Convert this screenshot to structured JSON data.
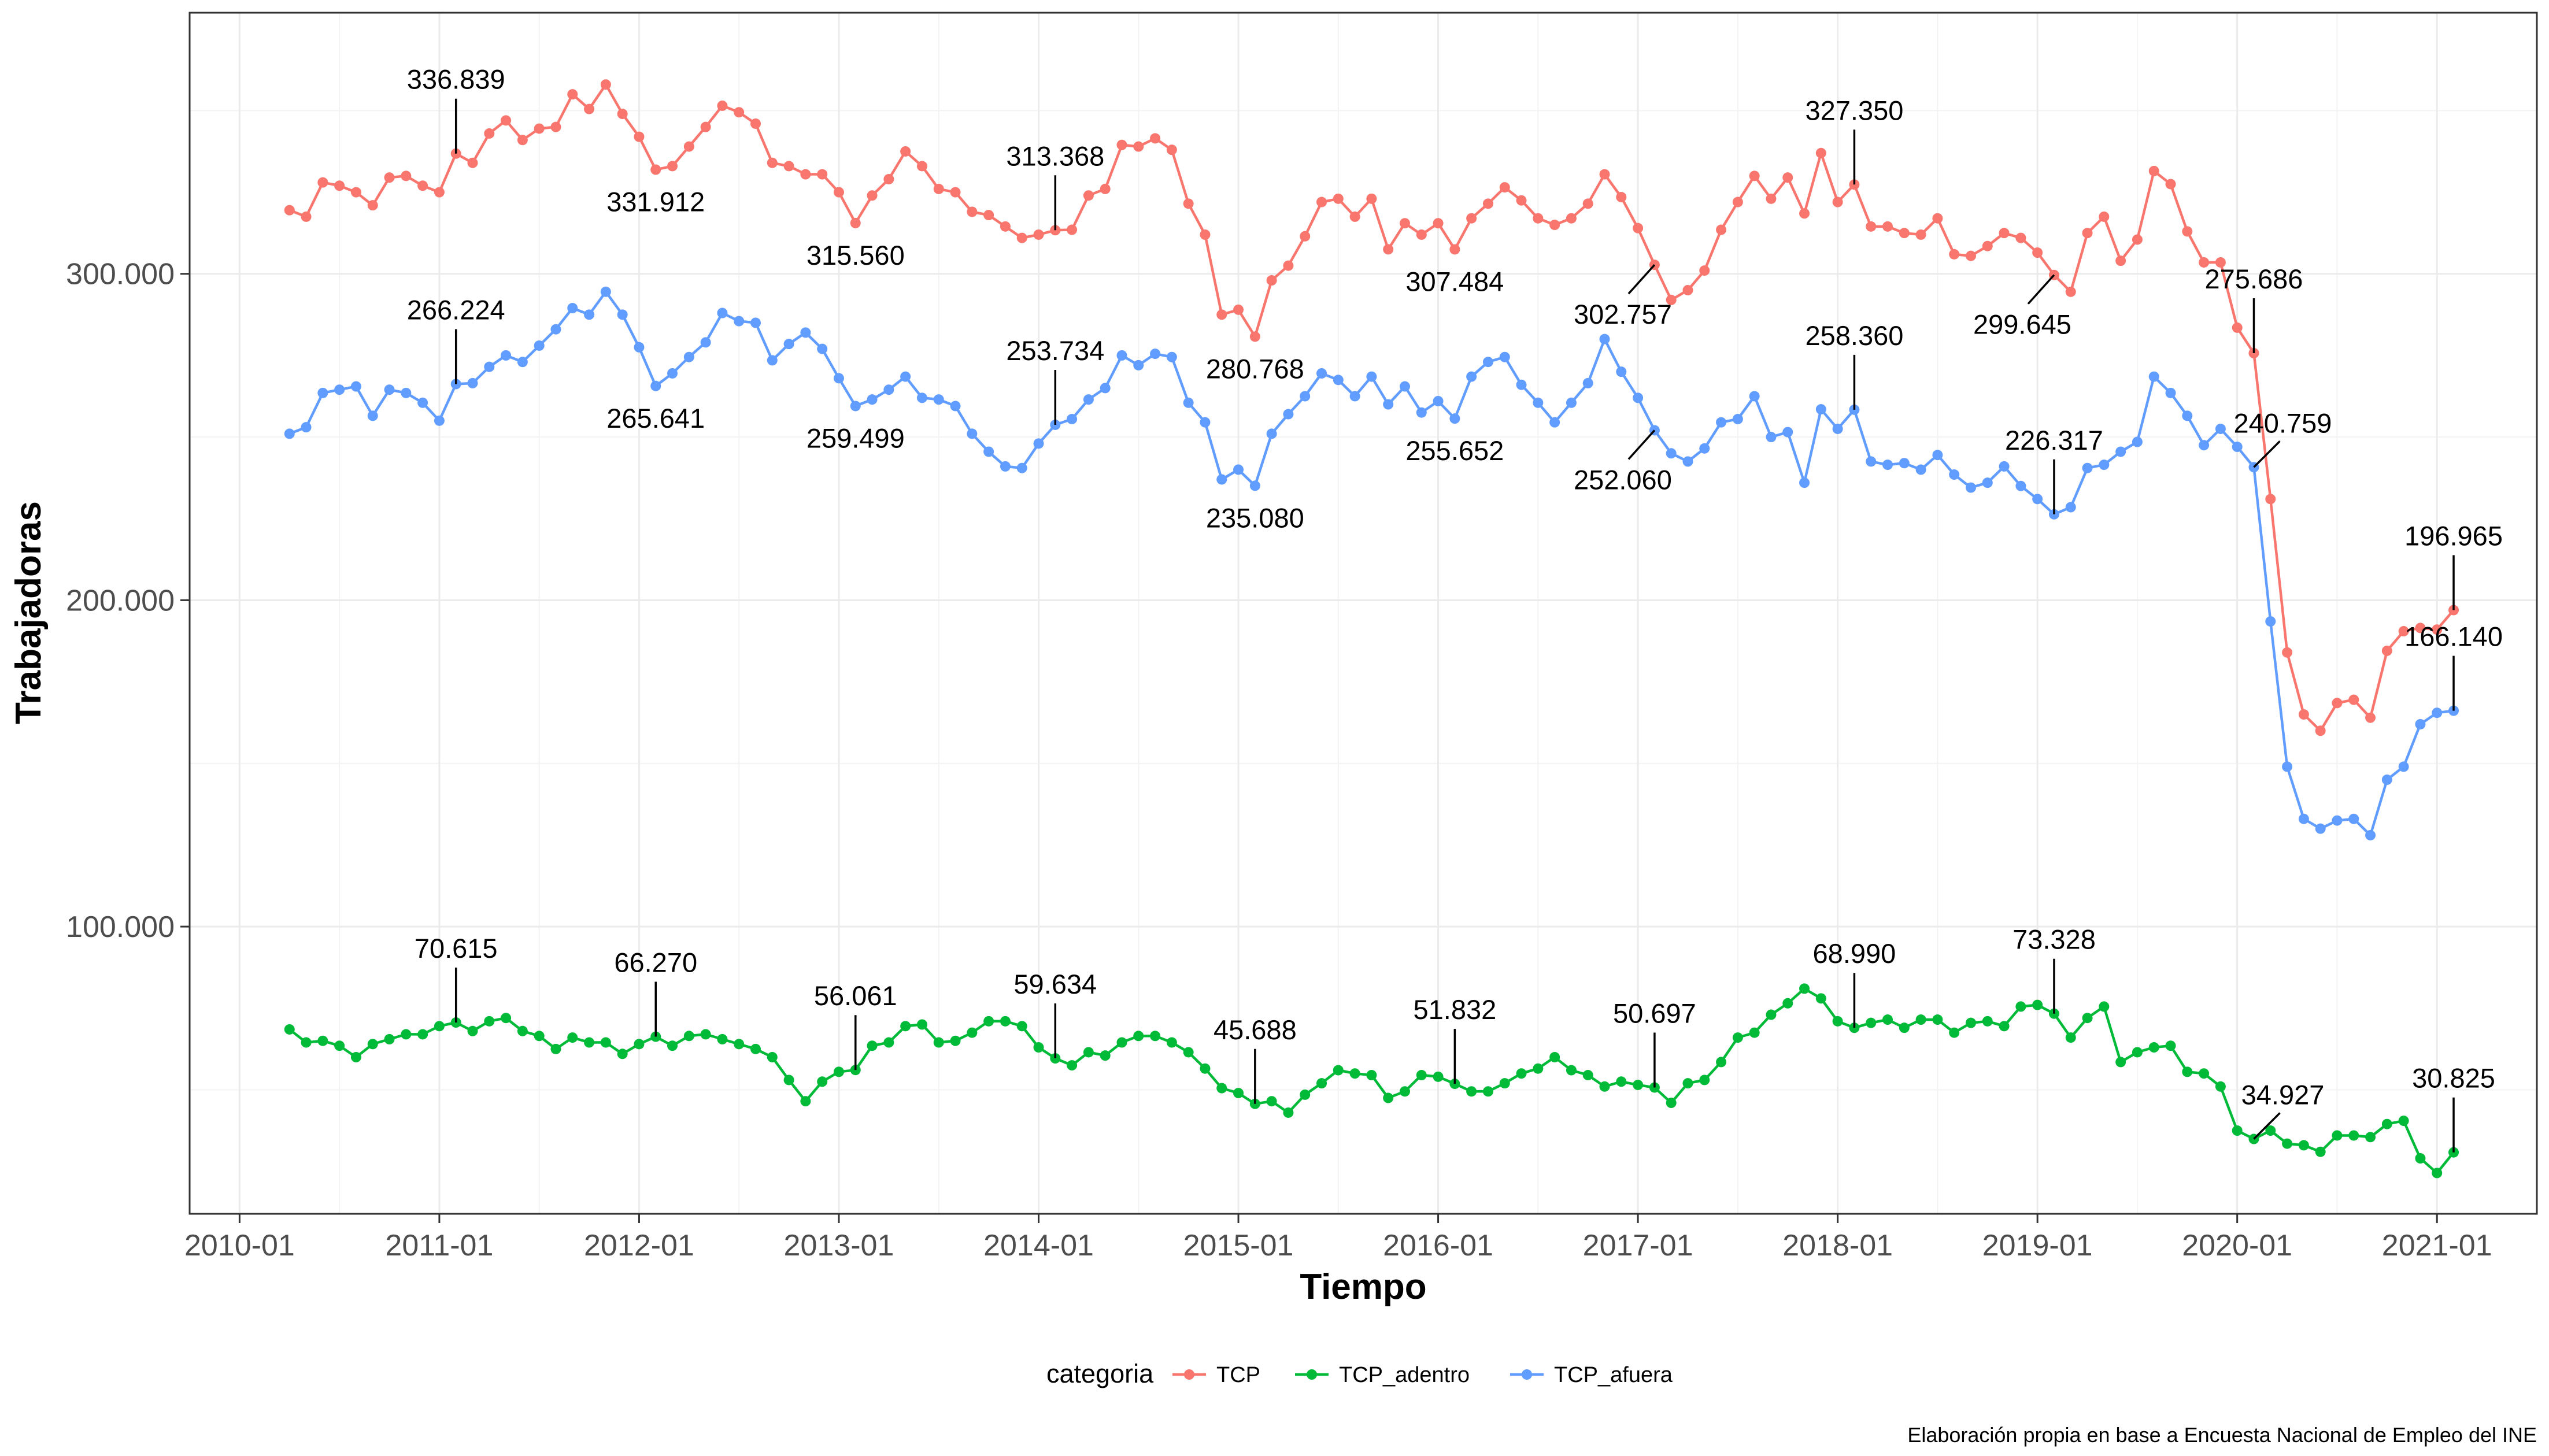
{
  "chart_data": {
    "type": "line",
    "xlabel": "Tiempo",
    "ylabel": "Trabajadoras",
    "caption": "Elaboración propia en base a Encuesta Nacional de Empleo del INE",
    "legend_title": "categoria",
    "legend_position": "bottom",
    "grid": true,
    "x_start": "2010-04",
    "x_end": "2021-02",
    "xlim": [
      "2009-10",
      "2021-07"
    ],
    "ylim": [
      12000,
      380000
    ],
    "x_ticks": [
      "2010-01",
      "2011-01",
      "2012-01",
      "2013-01",
      "2014-01",
      "2015-01",
      "2016-01",
      "2017-01",
      "2018-01",
      "2019-01",
      "2020-01",
      "2021-01"
    ],
    "y_ticks": [
      100000,
      200000,
      300000
    ],
    "y_tick_labels": [
      "100.000",
      "200.000",
      "300.000"
    ],
    "series": [
      {
        "name": "TCP",
        "color": "#F8766D",
        "values": [
          319500,
          317500,
          328000,
          327000,
          325000,
          321000,
          329500,
          330000,
          327000,
          325000,
          336839,
          334000,
          343000,
          347000,
          341000,
          344500,
          345000,
          355000,
          350500,
          358000,
          349000,
          342000,
          331912,
          333000,
          339000,
          345000,
          351500,
          349500,
          346000,
          334000,
          333000,
          330500,
          330500,
          325000,
          315560,
          324000,
          329000,
          337500,
          333000,
          326000,
          325000,
          319000,
          318000,
          314500,
          311000,
          312000,
          313368,
          313500,
          324000,
          326000,
          339500,
          339000,
          341500,
          338000,
          321500,
          312000,
          287500,
          289000,
          280768,
          298000,
          302500,
          311500,
          322000,
          323000,
          317500,
          323000,
          307500,
          315500,
          312000,
          315500,
          307484,
          317000,
          321500,
          326500,
          322500,
          317000,
          315000,
          317000,
          321500,
          330500,
          323500,
          314000,
          302757,
          292000,
          295000,
          301000,
          313500,
          322000,
          330000,
          323000,
          329500,
          318500,
          337000,
          322000,
          327350,
          314500,
          314500,
          312500,
          312000,
          317000,
          306000,
          305500,
          308500,
          312500,
          311000,
          306500,
          299645,
          294500,
          312500,
          317500,
          304000,
          310500,
          331500,
          327500,
          313000,
          303500,
          303500,
          283500,
          275686,
          231000,
          184000,
          165000,
          160000,
          168500,
          169500,
          164000,
          184500,
          190500,
          191500,
          191000,
          196965
        ],
        "labels": [
          {
            "x": "2011-02",
            "text": "336.839",
            "pos": "above"
          },
          {
            "x": "2012-02",
            "text": "331.912",
            "pos": "below"
          },
          {
            "x": "2013-02",
            "text": "315.560",
            "pos": "below"
          },
          {
            "x": "2014-02",
            "text": "313.368",
            "pos": "above"
          },
          {
            "x": "2015-02",
            "text": "280.768",
            "pos": "below"
          },
          {
            "x": "2016-02",
            "text": "307.484",
            "pos": "below"
          },
          {
            "x": "2017-02",
            "text": "302.757",
            "pos": "below-left"
          },
          {
            "x": "2018-02",
            "text": "327.350",
            "pos": "above"
          },
          {
            "x": "2019-02",
            "text": "299.645",
            "pos": "below-left"
          },
          {
            "x": "2020-02",
            "text": "275.686",
            "pos": "above"
          },
          {
            "x": "2021-02",
            "text": "196.965",
            "pos": "above"
          }
        ]
      },
      {
        "name": "TCP_adentro",
        "color": "#00BA38",
        "values": [
          68500,
          64500,
          65000,
          63500,
          60000,
          64000,
          65500,
          67000,
          67000,
          69500,
          70615,
          68000,
          71000,
          72000,
          68000,
          66500,
          62500,
          66000,
          64500,
          64500,
          61000,
          64000,
          66270,
          63500,
          66500,
          67000,
          65500,
          64000,
          62500,
          60000,
          53000,
          46500,
          52500,
          55500,
          56061,
          63500,
          64500,
          69500,
          70000,
          64500,
          65000,
          67500,
          71000,
          71000,
          69500,
          63000,
          59634,
          57500,
          61500,
          60500,
          64500,
          66500,
          66500,
          64500,
          61500,
          56500,
          50500,
          49000,
          45688,
          46500,
          43000,
          48500,
          52000,
          56000,
          55000,
          54500,
          47500,
          49500,
          54500,
          54000,
          51832,
          49500,
          49500,
          52000,
          55000,
          56500,
          60000,
          56000,
          54500,
          51000,
          52500,
          51500,
          50697,
          46000,
          52000,
          53000,
          58500,
          66000,
          67500,
          73000,
          76500,
          81000,
          78000,
          71000,
          68990,
          70500,
          71500,
          69000,
          71500,
          71500,
          67500,
          70500,
          71000,
          69500,
          75500,
          76000,
          73328,
          66000,
          72000,
          75500,
          58500,
          61500,
          63000,
          63500,
          55500,
          55000,
          51000,
          37500,
          34927,
          37500,
          33500,
          33000,
          31000,
          36000,
          36000,
          35500,
          39500,
          40500,
          29000,
          24500,
          30825
        ],
        "labels": [
          {
            "x": "2011-02",
            "text": "70.615",
            "pos": "above"
          },
          {
            "x": "2012-02",
            "text": "66.270",
            "pos": "above"
          },
          {
            "x": "2013-02",
            "text": "56.061",
            "pos": "above"
          },
          {
            "x": "2014-02",
            "text": "59.634",
            "pos": "above"
          },
          {
            "x": "2015-02",
            "text": "45.688",
            "pos": "above"
          },
          {
            "x": "2016-02",
            "text": "51.832",
            "pos": "above"
          },
          {
            "x": "2017-02",
            "text": "50.697",
            "pos": "above"
          },
          {
            "x": "2018-02",
            "text": "68.990",
            "pos": "above"
          },
          {
            "x": "2019-02",
            "text": "73.328",
            "pos": "above"
          },
          {
            "x": "2020-02",
            "text": "34.927",
            "pos": "above-right"
          },
          {
            "x": "2021-02",
            "text": "30.825",
            "pos": "above"
          }
        ]
      },
      {
        "name": "TCP_afuera",
        "color": "#619CFF",
        "values": [
          251000,
          253000,
          263500,
          264500,
          265500,
          256500,
          264500,
          263500,
          260500,
          255000,
          266224,
          266500,
          271500,
          275000,
          273000,
          278000,
          283000,
          289500,
          287500,
          294500,
          287500,
          277500,
          265641,
          269500,
          274500,
          279000,
          288000,
          285500,
          285000,
          273500,
          278500,
          282000,
          277000,
          268000,
          259499,
          261500,
          264500,
          268500,
          262000,
          261500,
          259500,
          251000,
          245500,
          241000,
          240500,
          248000,
          253734,
          255500,
          261500,
          265000,
          275000,
          272000,
          275500,
          274500,
          260500,
          254500,
          237000,
          240000,
          235080,
          251000,
          257000,
          262500,
          269500,
          267500,
          262500,
          268500,
          260000,
          265500,
          257500,
          261000,
          255652,
          268500,
          273000,
          274500,
          266000,
          260500,
          254500,
          260500,
          266500,
          280000,
          270000,
          262000,
          252060,
          245000,
          242500,
          246500,
          254500,
          255500,
          262500,
          250000,
          251500,
          236000,
          258500,
          252500,
          258360,
          242500,
          241500,
          242000,
          240000,
          244500,
          238500,
          234500,
          236000,
          241000,
          235000,
          231000,
          226317,
          228500,
          240500,
          241500,
          245500,
          248500,
          268500,
          263500,
          256500,
          247500,
          252500,
          247000,
          240759,
          193500,
          149000,
          133000,
          130000,
          132500,
          133000,
          128000,
          145000,
          149000,
          162000,
          165500,
          166140
        ],
        "labels": [
          {
            "x": "2011-02",
            "text": "266.224",
            "pos": "above"
          },
          {
            "x": "2012-02",
            "text": "265.641",
            "pos": "below"
          },
          {
            "x": "2013-02",
            "text": "259.499",
            "pos": "below"
          },
          {
            "x": "2014-02",
            "text": "253.734",
            "pos": "above"
          },
          {
            "x": "2015-02",
            "text": "235.080",
            "pos": "below"
          },
          {
            "x": "2016-02",
            "text": "255.652",
            "pos": "below"
          },
          {
            "x": "2017-02",
            "text": "252.060",
            "pos": "below-left"
          },
          {
            "x": "2018-02",
            "text": "258.360",
            "pos": "above"
          },
          {
            "x": "2019-02",
            "text": "226.317",
            "pos": "above"
          },
          {
            "x": "2020-02",
            "text": "240.759",
            "pos": "above-right"
          },
          {
            "x": "2021-02",
            "text": "166.140",
            "pos": "above"
          }
        ]
      }
    ]
  }
}
